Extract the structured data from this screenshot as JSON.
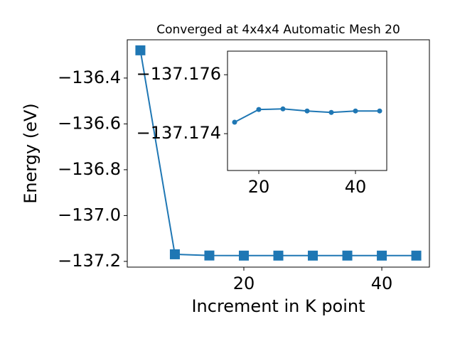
{
  "chart_data": [
    {
      "type": "line",
      "title": "Converged at 4x4x4 Automatic Mesh 20",
      "x_label": "Increment in K point",
      "y_label": "Energy (eV)",
      "x": [
        5,
        10,
        15,
        20,
        25,
        30,
        35,
        40,
        45
      ],
      "values": [
        -136.279,
        -137.169,
        -137.1744,
        -137.1748,
        -137.1748,
        -137.1748,
        -137.1747,
        -137.1748,
        -137.1748
      ],
      "color": "#1f77b4",
      "marker": "square",
      "xlim": [
        3.1,
        46.9
      ],
      "xticks": [
        20,
        40
      ],
      "ylim": [
        -137.225,
        -136.233
      ],
      "yticks": [
        {
          "value": -137.2,
          "label": "−137.2"
        },
        {
          "value": -137.0,
          "label": "−137.0"
        },
        {
          "value": -136.8,
          "label": "−136.8"
        },
        {
          "value": -136.6,
          "label": "−136.6"
        },
        {
          "value": -136.4,
          "label": "−136.4"
        }
      ]
    },
    {
      "type": "line",
      "x": [
        15,
        20,
        25,
        30,
        35,
        40,
        45
      ],
      "values": [
        -137.17439,
        -137.17482,
        -137.17484,
        -137.17477,
        -137.17472,
        -137.17477,
        -137.17477
      ],
      "color": "#1f77b4",
      "marker": "circle",
      "xlim": [
        13.53,
        46.47
      ],
      "xticks": [
        20,
        40
      ],
      "ylim": [
        -137.17275,
        -137.1768
      ],
      "yticks": [
        {
          "value": -137.176,
          "label": "−137.176"
        },
        {
          "value": -137.174,
          "label": "−137.174"
        }
      ]
    }
  ]
}
